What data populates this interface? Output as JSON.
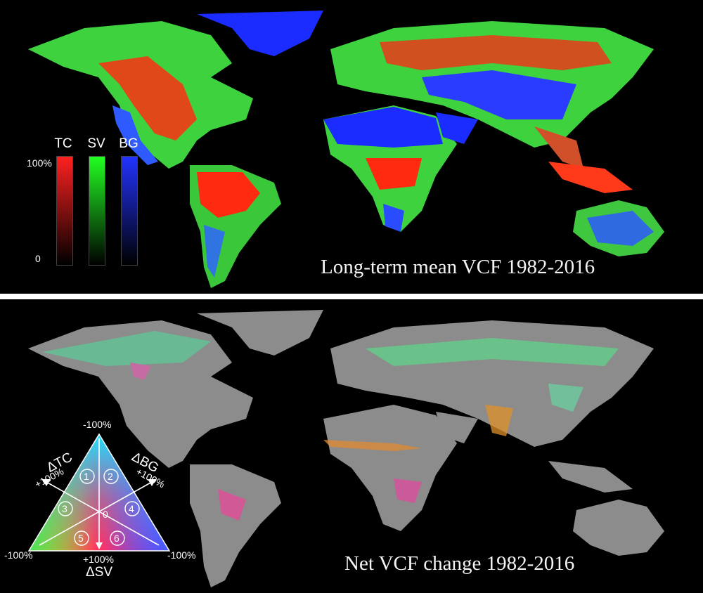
{
  "top_panel": {
    "caption": "Long-term mean VCF 1982-2016",
    "legend": {
      "bars": [
        {
          "label": "TC",
          "color": "#ff2020"
        },
        {
          "label": "SV",
          "color": "#22ff22"
        },
        {
          "label": "BG",
          "color": "#2233ff"
        }
      ],
      "max_label": "100%",
      "min_label": "0"
    }
  },
  "bottom_panel": {
    "caption": "Net VCF change 1982-2016",
    "triangle_legend": {
      "top_label": "-100%",
      "left_label": "-100%",
      "right_label": "-100%",
      "tc_delta": "ΔTC",
      "tc_pct": "+100%",
      "bg_delta": "ΔBG",
      "bg_pct": "+100%",
      "sv_pct": "+100%",
      "sv_delta": "ΔSV",
      "center": "0",
      "zones": [
        "1",
        "2",
        "3",
        "4",
        "5",
        "6"
      ]
    }
  },
  "colors": {
    "background": "#000000",
    "land_gray": "#8c8c8c",
    "tree_cover": "#ff2a10",
    "short_veg": "#3cd23c",
    "bare_ground": "#1a2cff"
  }
}
